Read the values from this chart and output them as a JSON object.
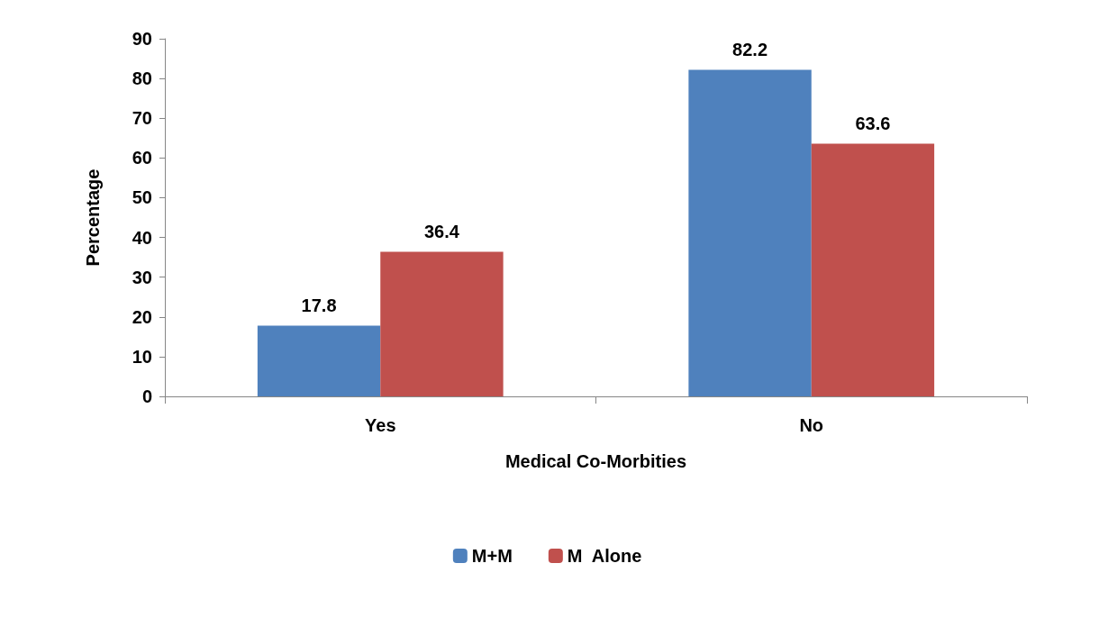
{
  "chart_data": {
    "type": "bar",
    "xlabel": "Medical Co-Morbities",
    "ylabel": "Percentage",
    "categories": [
      "Yes",
      "No"
    ],
    "series": [
      {
        "name": "M+M",
        "color": "#4f81bd",
        "values": [
          17.8,
          82.2
        ]
      },
      {
        "name": "M  Alone",
        "color": "#c0504d",
        "values": [
          36.4,
          63.6
        ]
      }
    ],
    "ylim": [
      0,
      90
    ],
    "yticks": [
      0,
      10,
      20,
      30,
      40,
      50,
      60,
      70,
      80,
      90
    ],
    "grid": false,
    "legend": "bottom",
    "data_labels": true
  }
}
